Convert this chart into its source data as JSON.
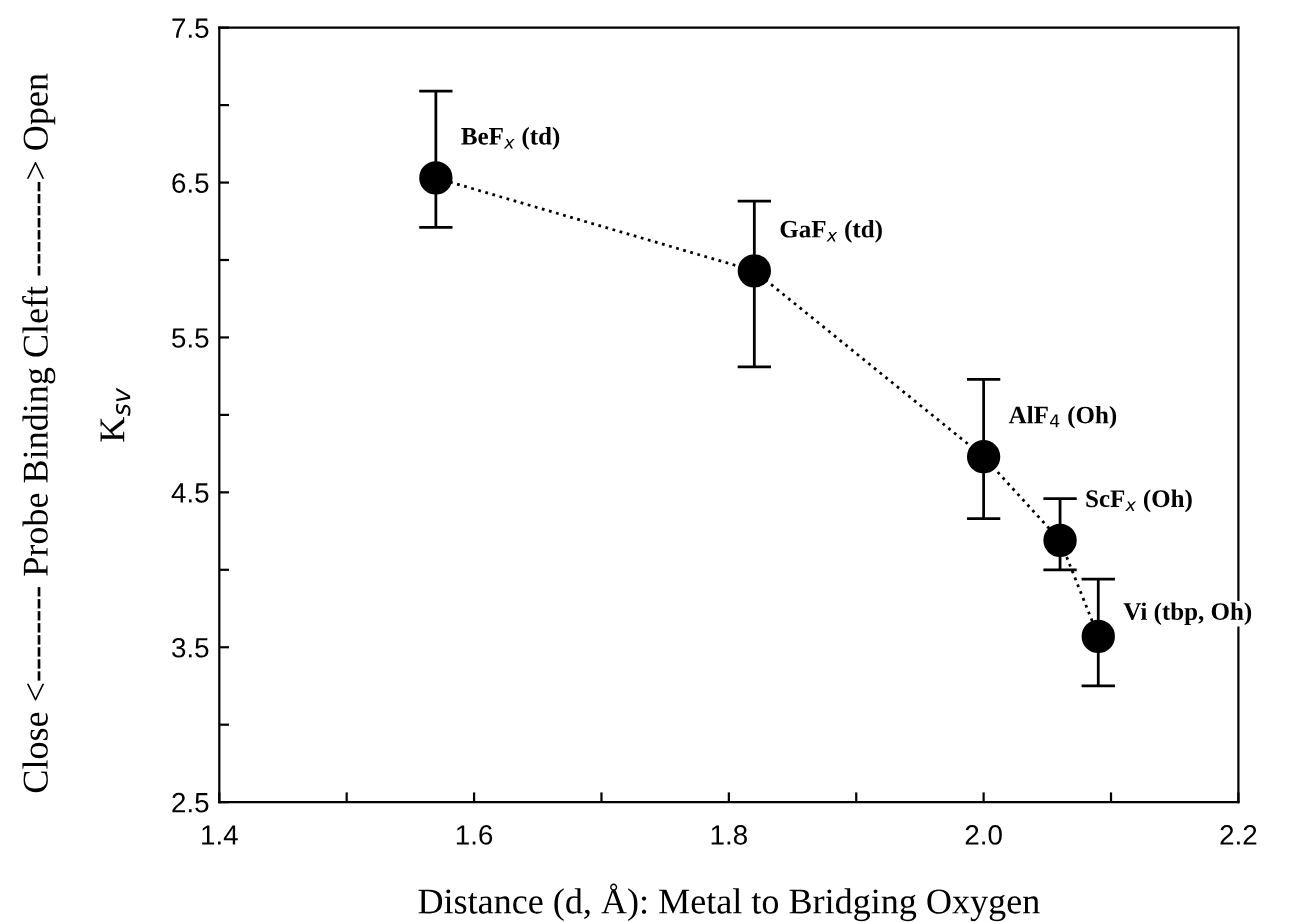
{
  "chart_data": {
    "type": "line",
    "xlabel": "Distance (d, Å): Metal to Bridging Oxygen",
    "ylabel": "K$_{sv}$",
    "x": [
      1.57,
      1.82,
      2.0,
      2.06,
      2.09
    ],
    "series": [
      {
        "color": "#000000",
        "values": [
          6.53,
          5.93,
          4.73,
          4.19,
          3.57
        ],
        "errors": [
          [
            6.21,
            7.09
          ],
          [
            5.31,
            6.38
          ],
          [
            4.33,
            5.23
          ],
          [
            4.0,
            4.46
          ],
          [
            3.25,
            3.94
          ]
        ]
      }
    ],
    "marker": "circle",
    "line_style": "dotted",
    "grid": false,
    "legend": false,
    "xlim": [
      1.4,
      2.2
    ],
    "xticks": [
      {
        "value": 1.4,
        "label": "1.4"
      },
      {
        "value": 1.5,
        "label": null
      },
      {
        "value": 1.6,
        "label": "1.6"
      },
      {
        "value": 1.7,
        "label": null
      },
      {
        "value": 1.8,
        "label": "1.8"
      },
      {
        "value": 1.9,
        "label": null
      },
      {
        "value": 2.0,
        "label": "2.0"
      },
      {
        "value": 2.1,
        "label": null
      },
      {
        "value": 2.2,
        "label": "2.2"
      }
    ],
    "ylim": [
      2.5,
      7.5
    ],
    "yticks": [
      2.5,
      {
        "value": 3.0,
        "label": null
      },
      3.5,
      {
        "value": 4.0,
        "label": null
      },
      4.5,
      {
        "value": 5.0,
        "label": null
      },
      5.5,
      {
        "value": 6.0,
        "label": null
      },
      6.5,
      {
        "value": 7.0,
        "label": null
      },
      7.5
    ],
    "annotations": [
      {
        "text": "BeF$_{x}$ (td)",
        "x": 1.57,
        "y": 6.53
      },
      {
        "text": "GaF$_{x}$ (td)",
        "x": 1.82,
        "y": 5.93
      },
      {
        "text": "AlF$_{4}$ (Oh)",
        "x": 2.0,
        "y": 4.73
      },
      {
        "text": "ScF$_{x}$ (Oh)",
        "x": 2.06,
        "y": 4.19
      },
      {
        "text": "Vi (tbp, Oh)",
        "x": 2.09,
        "y": 3.57
      },
      "Close <-------- Probe Binding Cleft --------> Open"
    ]
  }
}
